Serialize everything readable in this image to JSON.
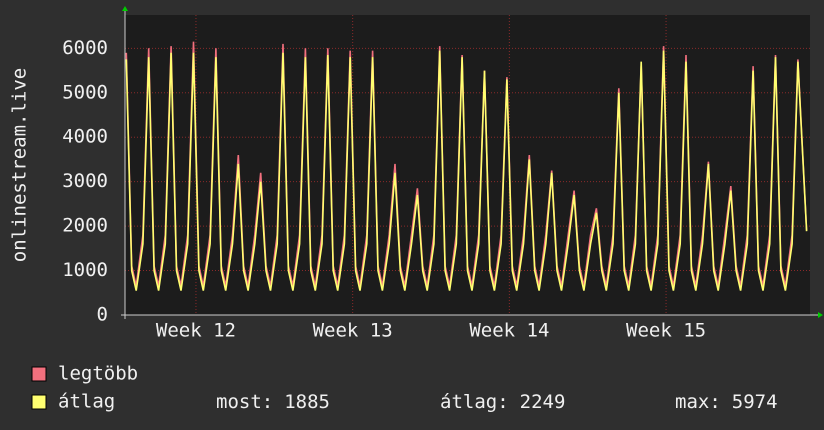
{
  "chart_data": {
    "type": "line",
    "y_label": "onlinestream.live",
    "x": [
      0.06,
      0.3,
      0.5,
      0.8,
      1.06,
      1.3,
      1.5,
      1.8,
      2.06,
      2.3,
      2.5,
      2.8,
      3.06,
      3.3,
      3.5,
      3.8,
      4.06,
      4.3,
      4.5,
      4.8,
      5.06,
      5.3,
      5.5,
      5.8,
      6.06,
      6.3,
      6.5,
      6.8,
      7.06,
      7.3,
      7.5,
      7.8,
      8.06,
      8.3,
      8.5,
      8.8,
      9.06,
      9.3,
      9.5,
      9.8,
      10.06,
      10.3,
      10.5,
      10.8,
      11.06,
      11.3,
      11.5,
      11.8,
      12.06,
      12.3,
      12.5,
      12.8,
      13.06,
      13.3,
      13.5,
      13.8,
      14.06,
      14.3,
      14.5,
      14.8,
      15.06,
      15.3,
      15.5,
      15.8,
      16.06,
      16.3,
      16.5,
      16.8,
      17.06,
      17.3,
      17.5,
      17.8,
      18.06,
      18.3,
      18.5,
      18.8,
      19.06,
      19.3,
      19.5,
      19.8,
      20.06,
      20.3,
      20.5,
      20.8,
      21.06,
      21.3,
      21.5,
      21.8,
      22.06,
      22.3,
      22.5,
      22.8,
      23.06,
      23.3,
      23.5,
      23.8,
      24.06,
      24.3,
      24.5,
      24.8,
      25.06,
      25.3,
      25.5,
      25.8,
      26.06,
      26.3,
      26.5,
      26.8,
      27.06,
      27.3,
      27.5,
      27.8,
      28.06,
      28.3,
      28.5,
      28.8,
      29.06,
      29.3,
      29.5,
      29.8,
      30.06,
      30.45
    ],
    "series": [
      {
        "name": "legtöbb",
        "color": "#f2707e",
        "values": [
          5900,
          1100,
          650,
          1800,
          6000,
          1100,
          650,
          1800,
          6050,
          1100,
          650,
          1800,
          6150,
          1100,
          650,
          1800,
          6000,
          1100,
          650,
          1800,
          3600,
          1100,
          650,
          1800,
          3200,
          1100,
          650,
          1800,
          6100,
          1100,
          650,
          1800,
          6000,
          1100,
          650,
          1800,
          6000,
          1100,
          650,
          1800,
          5950,
          1100,
          650,
          1800,
          5950,
          1100,
          650,
          1800,
          3400,
          1100,
          650,
          1800,
          2850,
          1100,
          650,
          1800,
          6050,
          1100,
          650,
          1800,
          5850,
          1100,
          650,
          1800,
          5500,
          1100,
          650,
          1800,
          5350,
          1100,
          650,
          1800,
          3600,
          1100,
          650,
          1800,
          3250,
          1100,
          650,
          1800,
          2800,
          1100,
          650,
          1800,
          2400,
          1100,
          650,
          1800,
          5100,
          1100,
          650,
          1800,
          5600,
          1100,
          650,
          1800,
          6050,
          1100,
          650,
          1800,
          5850,
          1100,
          650,
          1800,
          3450,
          1100,
          650,
          1800,
          2900,
          1100,
          650,
          1800,
          5600,
          1100,
          650,
          1800,
          5850,
          1100,
          650,
          1800,
          5750,
          1900
        ]
      },
      {
        "name": "átlag",
        "color": "#ffff70",
        "values": [
          5750,
          1000,
          550,
          1600,
          5800,
          1000,
          550,
          1600,
          5900,
          1000,
          550,
          1600,
          5900,
          1000,
          550,
          1600,
          5800,
          1000,
          550,
          1600,
          3400,
          1000,
          550,
          1600,
          3000,
          1000,
          550,
          1600,
          5900,
          1000,
          550,
          1600,
          5800,
          1000,
          550,
          1600,
          5850,
          1000,
          550,
          1600,
          5800,
          1000,
          550,
          1600,
          5800,
          1000,
          550,
          1600,
          3200,
          1000,
          550,
          1600,
          2700,
          1000,
          550,
          1600,
          5950,
          1000,
          550,
          1600,
          5800,
          1000,
          550,
          1600,
          5500,
          1000,
          550,
          1600,
          5300,
          1000,
          550,
          1600,
          3500,
          1000,
          550,
          1600,
          3200,
          1000,
          550,
          1600,
          2700,
          1000,
          550,
          1600,
          2300,
          1000,
          550,
          1600,
          5000,
          1000,
          550,
          1600,
          5700,
          1000,
          550,
          1600,
          5950,
          1000,
          550,
          1600,
          5700,
          1000,
          550,
          1600,
          3400,
          1000,
          550,
          1600,
          2800,
          1000,
          550,
          1600,
          5500,
          1000,
          550,
          1600,
          5800,
          1000,
          550,
          1600,
          5700,
          1885
        ]
      }
    ],
    "stats": [
      {
        "label": "most:",
        "value": 1885
      },
      {
        "label": "átlag:",
        "value": 2249
      },
      {
        "label": "max:",
        "value": 5974
      }
    ],
    "xlim": [
      0,
      30.6
    ],
    "xticks": [
      {
        "value": 3.17,
        "label": "Week 12"
      },
      {
        "value": 10.17,
        "label": "Week 13"
      },
      {
        "value": 17.17,
        "label": "Week 14"
      },
      {
        "value": 24.17,
        "label": "Week 15"
      }
    ],
    "ylim": [
      0,
      6750
    ],
    "yticks": [
      0,
      1000,
      2000,
      3000,
      4000,
      5000,
      6000
    ],
    "grid": true
  }
}
